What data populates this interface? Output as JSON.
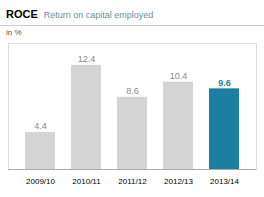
{
  "chart_data": {
    "type": "bar",
    "title": "ROCE",
    "subtitle": "Return on capital employed",
    "ylabel": "in %",
    "categories": [
      "2009/10",
      "2010/11",
      "2011/12",
      "2012/13",
      "2013/14"
    ],
    "values": [
      4.4,
      12.4,
      8.6,
      10.4,
      9.6
    ],
    "colors": [
      "#d4d4d4",
      "#d4d4d4",
      "#d4d4d4",
      "#d4d4d4",
      "#1a7fa0"
    ],
    "ylim": [
      0,
      15.0
    ],
    "data_labels": true,
    "tick_labels": "x",
    "grid": false
  }
}
